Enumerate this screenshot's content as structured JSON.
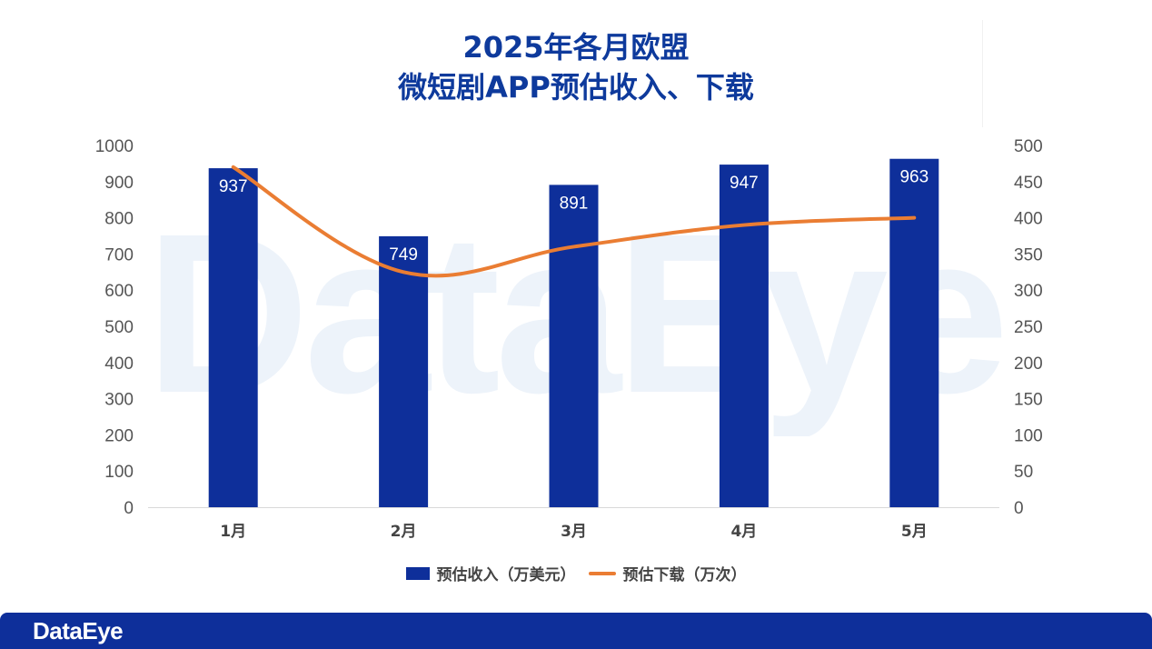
{
  "title": {
    "line1": "2025年各月欧盟",
    "line2": "微短剧APP预估收入、下载"
  },
  "watermark_text": "DataEye",
  "footer_logo": "DataEye",
  "colors": {
    "bar": "#0e2f9a",
    "line": "#ea7d33",
    "title": "#0e3a9c"
  },
  "chart_data": {
    "type": "bar",
    "categories": [
      "1月",
      "2月",
      "3月",
      "4月",
      "5月"
    ],
    "series": [
      {
        "name": "预估收入（万美元）",
        "type": "bar",
        "axis": "left",
        "values": [
          937,
          749,
          891,
          947,
          963
        ]
      },
      {
        "name": "预估下载（万次）",
        "type": "line",
        "axis": "right",
        "values": [
          470,
          325,
          360,
          390,
          400
        ]
      }
    ],
    "y_left": {
      "range": [
        0,
        1000
      ],
      "ticks": [
        0,
        100,
        200,
        300,
        400,
        500,
        600,
        700,
        800,
        900,
        1000
      ]
    },
    "y_right": {
      "range": [
        0,
        500
      ],
      "ticks": [
        0,
        50,
        100,
        150,
        200,
        250,
        300,
        350,
        400,
        450,
        500
      ]
    },
    "legend_position": "bottom",
    "grid": false
  }
}
